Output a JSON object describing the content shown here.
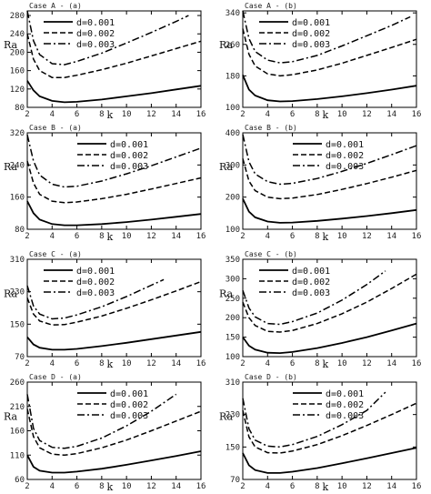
{
  "chart_data": [
    {
      "type": "line",
      "title": "Case A - (a)",
      "xlabel": "k",
      "ylabel": "Ra",
      "xlim": [
        2,
        16
      ],
      "ylim": [
        80,
        290
      ],
      "xticks": [
        2,
        4,
        6,
        8,
        10,
        12,
        14,
        16
      ],
      "yticks": [
        80,
        120,
        160,
        200,
        240,
        280
      ],
      "grid": false,
      "legend": "top-left",
      "series": [
        {
          "name": "d=0.001",
          "style": "solid",
          "x": [
            2,
            2.5,
            3,
            4,
            5,
            6,
            8,
            10,
            12,
            14,
            16
          ],
          "y": [
            138,
            117,
            104,
            94,
            91,
            92,
            97,
            104,
            111,
            119,
            127
          ]
        },
        {
          "name": "d=0.002",
          "style": "dashed",
          "x": [
            2,
            2.5,
            3,
            4,
            5,
            6,
            8,
            10,
            12,
            14,
            16
          ],
          "y": [
            240,
            185,
            160,
            145,
            145,
            150,
            162,
            176,
            192,
            208,
            224
          ]
        },
        {
          "name": "d=0.003",
          "style": "dashdot",
          "x": [
            2,
            2.5,
            3,
            4,
            5,
            6,
            8,
            10,
            12,
            14,
            15
          ],
          "y": [
            290,
            225,
            195,
            175,
            173,
            180,
            198,
            220,
            243,
            267,
            280
          ]
        }
      ]
    },
    {
      "type": "line",
      "title": "Case A - (b)",
      "xlabel": "k",
      "ylabel": "Ra",
      "xlim": [
        2,
        16
      ],
      "ylim": [
        100,
        345
      ],
      "xticks": [
        2,
        4,
        6,
        8,
        10,
        12,
        14,
        16
      ],
      "yticks": [
        100,
        180,
        260,
        340
      ],
      "grid": false,
      "legend": "top-left",
      "series": [
        {
          "name": "d=0.001",
          "style": "solid",
          "x": [
            2,
            2.5,
            3,
            4,
            5,
            6,
            8,
            10,
            12,
            14,
            16
          ],
          "y": [
            182,
            145,
            130,
            118,
            115,
            116,
            121,
            128,
            136,
            145,
            155
          ]
        },
        {
          "name": "d=0.002",
          "style": "dashed",
          "x": [
            2,
            2.5,
            3,
            4,
            5,
            6,
            8,
            10,
            12,
            14,
            16
          ],
          "y": [
            300,
            235,
            205,
            185,
            180,
            183,
            195,
            212,
            232,
            252,
            273
          ]
        },
        {
          "name": "d=0.003",
          "style": "dashdot",
          "x": [
            2,
            2.5,
            3,
            4,
            5,
            6,
            8,
            10,
            12,
            14,
            15.5
          ],
          "y": [
            345,
            275,
            242,
            220,
            213,
            216,
            232,
            256,
            282,
            308,
            330
          ]
        }
      ]
    },
    {
      "type": "line",
      "title": "Case B - (a)",
      "xlabel": "k",
      "ylabel": "Ra",
      "xlim": [
        2,
        16
      ],
      "ylim": [
        80,
        320
      ],
      "xticks": [
        2,
        4,
        6,
        8,
        10,
        12,
        14,
        16
      ],
      "yticks": [
        80,
        160,
        240,
        320
      ],
      "grid": false,
      "legend": "top-right",
      "series": [
        {
          "name": "d=0.001",
          "style": "solid",
          "x": [
            2,
            2.5,
            3,
            4,
            5,
            6,
            8,
            10,
            12,
            14,
            16
          ],
          "y": [
            150,
            120,
            104,
            93,
            90,
            90,
            93,
            98,
            104,
            111,
            118
          ]
        },
        {
          "name": "d=0.002",
          "style": "dashed",
          "x": [
            2,
            2.5,
            3,
            4,
            5,
            6,
            8,
            10,
            12,
            14,
            16
          ],
          "y": [
            250,
            195,
            167,
            150,
            146,
            148,
            156,
            167,
            180,
            194,
            208
          ]
        },
        {
          "name": "d=0.003",
          "style": "dashdot",
          "x": [
            2,
            2.5,
            3,
            4,
            5,
            6,
            8,
            10,
            12,
            14,
            16
          ],
          "y": [
            315,
            250,
            215,
            192,
            185,
            187,
            200,
            218,
            238,
            260,
            282
          ]
        }
      ]
    },
    {
      "type": "line",
      "title": "Case B - (b)",
      "xlabel": "k",
      "ylabel": "Ra",
      "xlim": [
        2,
        16
      ],
      "ylim": [
        100,
        400
      ],
      "xticks": [
        2,
        4,
        6,
        8,
        10,
        12,
        14,
        16
      ],
      "yticks": [
        100,
        200,
        300,
        400
      ],
      "grid": false,
      "legend": "top-right",
      "series": [
        {
          "name": "d=0.001",
          "style": "solid",
          "x": [
            2,
            2.5,
            3,
            4,
            5,
            6,
            8,
            10,
            12,
            14,
            16
          ],
          "y": [
            195,
            155,
            137,
            124,
            120,
            121,
            126,
            133,
            141,
            150,
            160
          ]
        },
        {
          "name": "d=0.002",
          "style": "dashed",
          "x": [
            2,
            2.5,
            3,
            4,
            5,
            6,
            8,
            10,
            12,
            14,
            16
          ],
          "y": [
            320,
            250,
            220,
            200,
            195,
            197,
            208,
            224,
            242,
            262,
            283
          ]
        },
        {
          "name": "d=0.003",
          "style": "dashdot",
          "x": [
            2,
            2.5,
            3,
            4,
            5,
            6,
            8,
            10,
            12,
            14,
            16
          ],
          "y": [
            395,
            310,
            272,
            248,
            240,
            243,
            258,
            280,
            305,
            332,
            360
          ]
        }
      ]
    },
    {
      "type": "line",
      "title": "Case C - (a)",
      "xlabel": "k",
      "ylabel": "Ra",
      "xlim": [
        2,
        16
      ],
      "ylim": [
        70,
        310
      ],
      "xticks": [
        2,
        4,
        6,
        8,
        10,
        12,
        14,
        16
      ],
      "yticks": [
        70,
        150,
        230,
        310
      ],
      "grid": false,
      "legend": "top-left",
      "series": [
        {
          "name": "d=0.001",
          "style": "solid",
          "x": [
            2,
            2.5,
            3,
            4,
            5,
            6,
            8,
            10,
            12,
            14,
            16
          ],
          "y": [
            118,
            100,
            92,
            87,
            87,
            89,
            96,
            104,
            113,
            122,
            131
          ]
        },
        {
          "name": "d=0.002",
          "style": "dashed",
          "x": [
            2,
            2.5,
            3,
            4,
            5,
            6,
            8,
            10,
            12,
            14,
            16
          ],
          "y": [
            215,
            175,
            158,
            148,
            149,
            155,
            170,
            189,
            210,
            232,
            255
          ]
        },
        {
          "name": "d=0.003",
          "style": "dashdot",
          "x": [
            2,
            2.5,
            3,
            4,
            5,
            6,
            8,
            10,
            12,
            13
          ],
          "y": [
            245,
            195,
            175,
            163,
            165,
            173,
            193,
            218,
            246,
            260
          ]
        }
      ]
    },
    {
      "type": "line",
      "title": "Case C - (b)",
      "xlabel": "k",
      "ylabel": "Ra",
      "xlim": [
        2,
        16
      ],
      "ylim": [
        100,
        350
      ],
      "xticks": [
        2,
        4,
        6,
        8,
        10,
        12,
        14,
        16
      ],
      "yticks": [
        100,
        150,
        200,
        250,
        300,
        350
      ],
      "grid": false,
      "legend": "top-left",
      "series": [
        {
          "name": "d=0.001",
          "style": "solid",
          "x": [
            2,
            2.5,
            3,
            4,
            5,
            6,
            8,
            10,
            12,
            14,
            16
          ],
          "y": [
            150,
            128,
            118,
            110,
            109,
            112,
            122,
            135,
            150,
            167,
            185
          ]
        },
        {
          "name": "d=0.002",
          "style": "dashed",
          "x": [
            2,
            2.5,
            3,
            4,
            5,
            6,
            8,
            10,
            12,
            14,
            16
          ],
          "y": [
            240,
            200,
            180,
            165,
            163,
            167,
            185,
            210,
            240,
            275,
            312
          ]
        },
        {
          "name": "d=0.003",
          "style": "dashdot",
          "x": [
            2,
            2.5,
            3,
            4,
            5,
            6,
            8,
            10,
            12,
            13.5
          ],
          "y": [
            270,
            225,
            202,
            185,
            183,
            190,
            212,
            245,
            285,
            320
          ]
        }
      ]
    },
    {
      "type": "line",
      "title": "Case D - (a)",
      "xlabel": "k",
      "ylabel": "Ra",
      "xlim": [
        2,
        16
      ],
      "ylim": [
        60,
        260
      ],
      "xticks": [
        2,
        4,
        6,
        8,
        10,
        12,
        14,
        16
      ],
      "yticks": [
        60,
        110,
        160,
        210,
        260
      ],
      "grid": false,
      "legend": "top-right",
      "series": [
        {
          "name": "d=0.001",
          "style": "solid",
          "x": [
            2,
            2.5,
            3,
            4,
            5,
            6,
            8,
            10,
            12,
            14,
            16
          ],
          "y": [
            110,
            86,
            78,
            74,
            74,
            76,
            82,
            90,
            99,
            108,
            118
          ]
        },
        {
          "name": "d=0.002",
          "style": "dashed",
          "x": [
            2,
            2.5,
            3,
            4,
            5,
            6,
            8,
            10,
            12,
            14,
            16
          ],
          "y": [
            205,
            148,
            125,
            112,
            110,
            113,
            125,
            141,
            160,
            180,
            200
          ]
        },
        {
          "name": "d=0.003",
          "style": "dashdot",
          "x": [
            2,
            2.5,
            3,
            4,
            5,
            6,
            8,
            10,
            12,
            14
          ],
          "y": [
            235,
            165,
            140,
            126,
            124,
            128,
            145,
            170,
            200,
            235
          ]
        }
      ]
    },
    {
      "type": "line",
      "title": "Case D - (b)",
      "xlabel": "k",
      "ylabel": "Ra",
      "xlim": [
        2,
        16
      ],
      "ylim": [
        70,
        310
      ],
      "xticks": [
        2,
        4,
        6,
        8,
        10,
        12,
        14,
        16
      ],
      "yticks": [
        70,
        150,
        230,
        310
      ],
      "grid": false,
      "legend": "top-right",
      "series": [
        {
          "name": "d=0.001",
          "style": "solid",
          "x": [
            2,
            2.5,
            3,
            4,
            5,
            6,
            8,
            10,
            12,
            14,
            16
          ],
          "y": [
            135,
            105,
            93,
            86,
            86,
            89,
            98,
            110,
            122,
            135,
            148
          ]
        },
        {
          "name": "d=0.002",
          "style": "dashed",
          "x": [
            2,
            2.5,
            3,
            4,
            5,
            6,
            8,
            10,
            12,
            14,
            16
          ],
          "y": [
            240,
            175,
            150,
            136,
            135,
            140,
            156,
            178,
            203,
            230,
            258
          ]
        },
        {
          "name": "d=0.003",
          "style": "dashdot",
          "x": [
            2,
            2.5,
            3,
            4,
            5,
            6,
            8,
            10,
            12,
            13.5
          ],
          "y": [
            270,
            195,
            167,
            152,
            150,
            156,
            176,
            205,
            240,
            285
          ]
        }
      ]
    }
  ]
}
